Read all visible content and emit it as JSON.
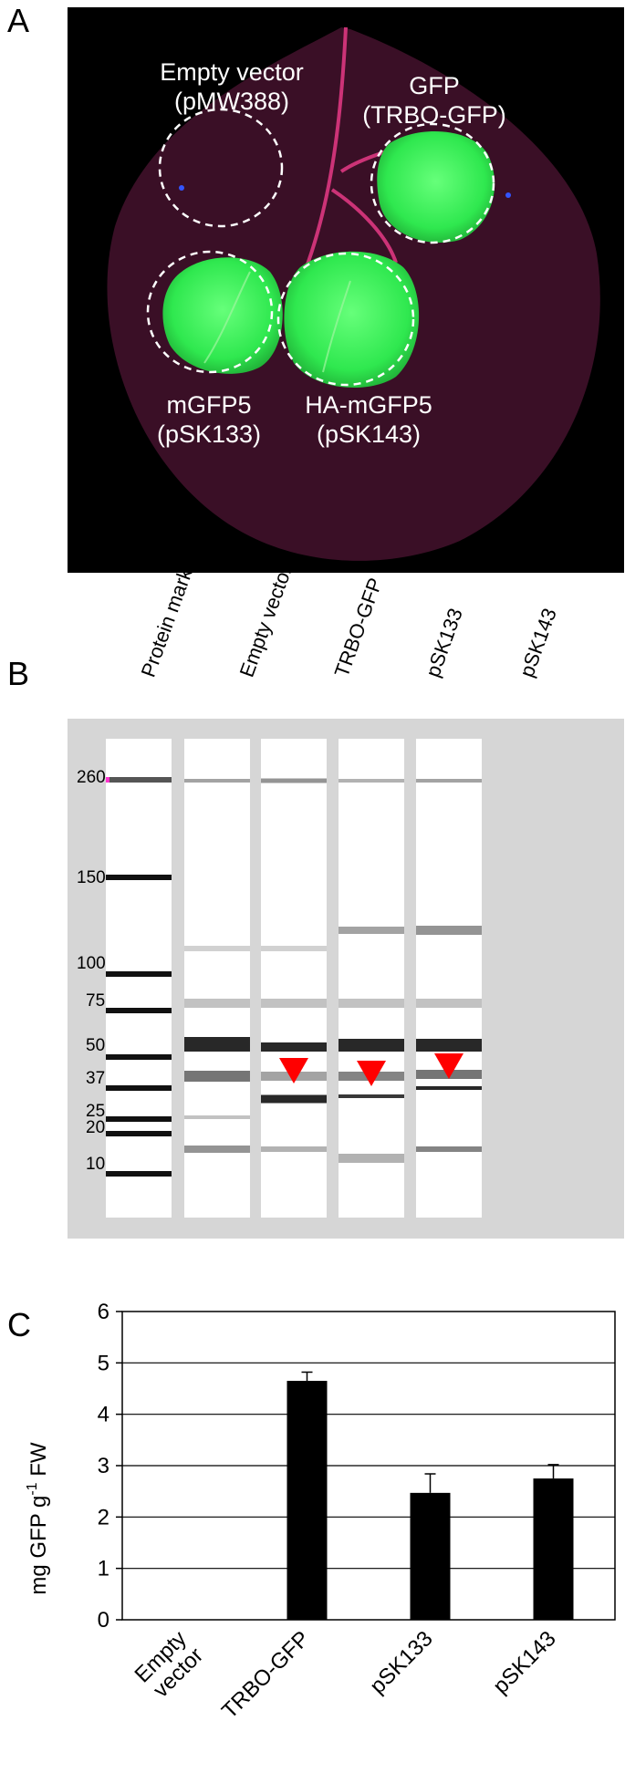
{
  "panels": {
    "a_letter": "A",
    "b_letter": "B",
    "c_letter": "C"
  },
  "leaf_panel": {
    "labels": [
      {
        "line1": "Empty vector",
        "line2": "(pMW388)"
      },
      {
        "line1": "GFP",
        "line2": "(TRBO-GFP)"
      },
      {
        "line1": "mGFP5",
        "line2": "(pSK133)"
      },
      {
        "line1": "HA-mGFP5",
        "line2": "(pSK143)"
      }
    ],
    "colors": {
      "background": "#000000",
      "leaf": "#3a0f26",
      "gfp": "#33ee55",
      "vein": "#cc3377"
    }
  },
  "gel_panel": {
    "lane_labels": [
      "Protein marker",
      "Empty vector",
      "TRBO-GFP",
      "pSK133",
      "pSK143"
    ],
    "marker_sizes": [
      "260",
      "150",
      "100",
      "75",
      "50",
      "37",
      "25",
      "20",
      "10"
    ],
    "arrow_color": "#ff0000"
  },
  "chart_data": {
    "type": "bar",
    "categories": [
      "Empty vector",
      "TRBO-GFP",
      "pSK133",
      "pSK143"
    ],
    "category_lines": [
      [
        "Empty",
        "vector"
      ],
      [
        "TRBO-GFP"
      ],
      [
        "pSK133"
      ],
      [
        "pSK143"
      ]
    ],
    "values": [
      0,
      4.65,
      2.47,
      2.75
    ],
    "errors": [
      0,
      0.17,
      0.37,
      0.27
    ],
    "ylabel_parts": {
      "pre": "mg GFP g",
      "sup": "-1",
      "post": " FW"
    },
    "ylim": [
      0,
      6
    ],
    "yticks": [
      "0",
      "1",
      "2",
      "3",
      "4",
      "5",
      "6"
    ],
    "grid": true,
    "bar_color": "#000000"
  }
}
